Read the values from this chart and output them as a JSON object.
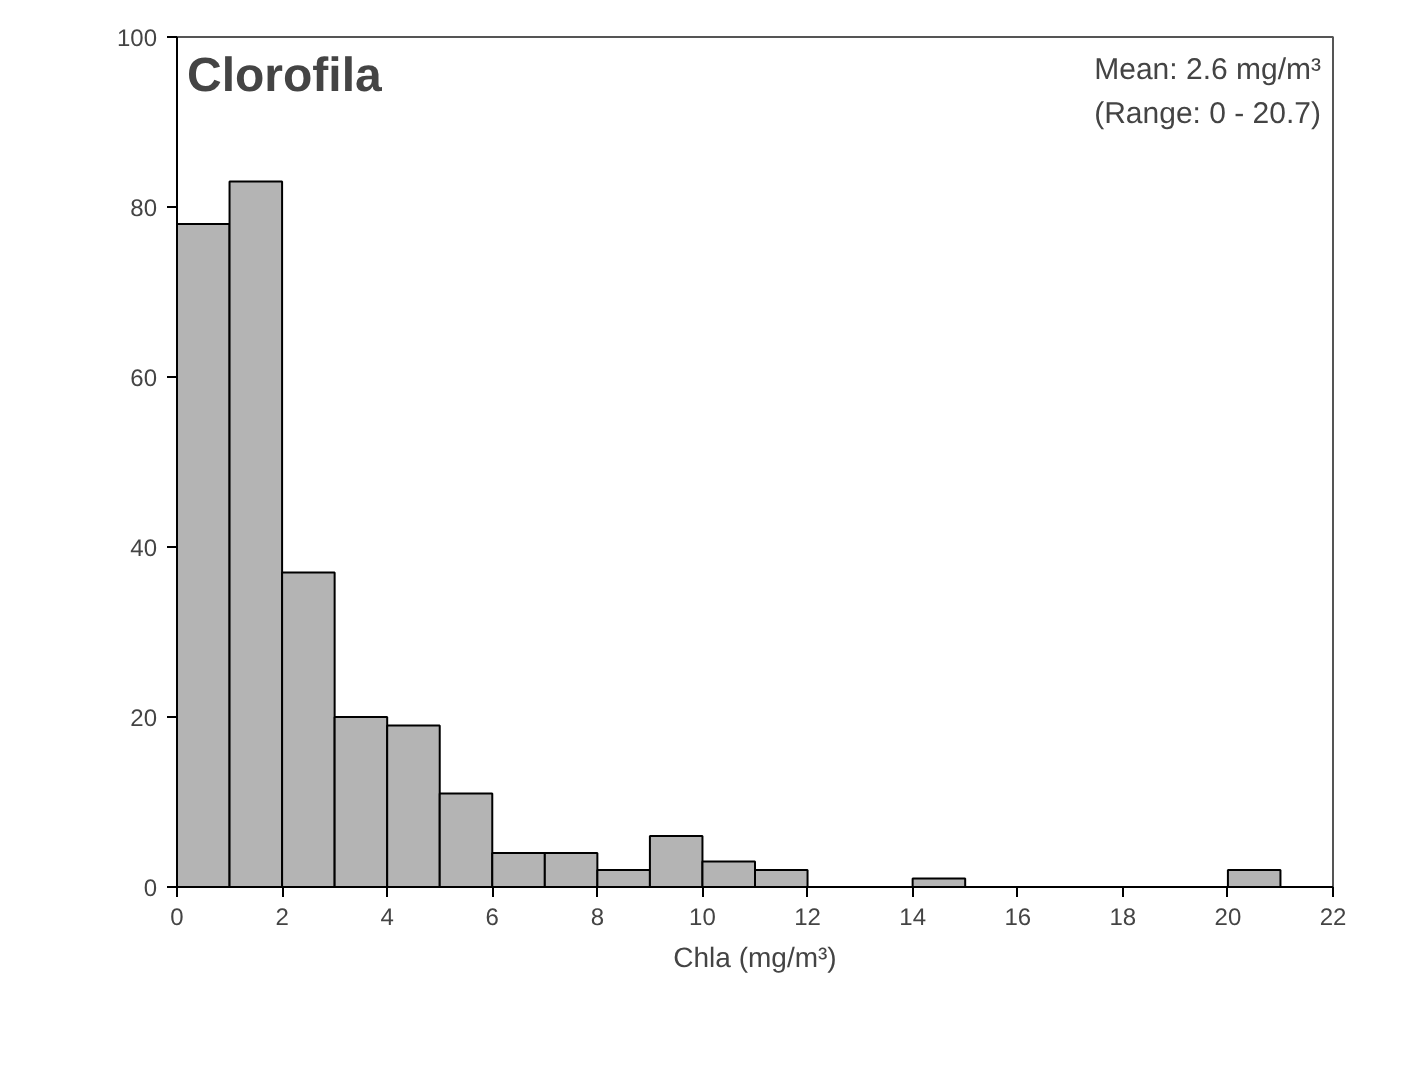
{
  "chart_data": {
    "type": "histogram",
    "title": "Clorofila",
    "xlabel": "Chla (mg/m³)",
    "annotations": [
      "Mean: 2.6 mg/m³",
      "(Range: 0 - 20.7)"
    ],
    "bins": [
      0,
      1,
      2,
      3,
      4,
      5,
      6,
      7,
      8,
      9,
      10,
      11,
      12,
      13,
      14,
      15,
      16,
      17,
      18,
      19,
      20,
      21
    ],
    "values": [
      78,
      83,
      37,
      20,
      19,
      11,
      4,
      4,
      2,
      6,
      3,
      2,
      0,
      0,
      1,
      0,
      0,
      0,
      0,
      0,
      2
    ],
    "color": "#b4b4b4",
    "xlim": [
      0,
      22
    ],
    "xticks": [
      0,
      2,
      4,
      6,
      8,
      10,
      12,
      14,
      16,
      18,
      20,
      22
    ],
    "ylim": [
      0,
      100
    ],
    "yticks": [
      0,
      20,
      40,
      60,
      80,
      100
    ],
    "grid": false
  }
}
